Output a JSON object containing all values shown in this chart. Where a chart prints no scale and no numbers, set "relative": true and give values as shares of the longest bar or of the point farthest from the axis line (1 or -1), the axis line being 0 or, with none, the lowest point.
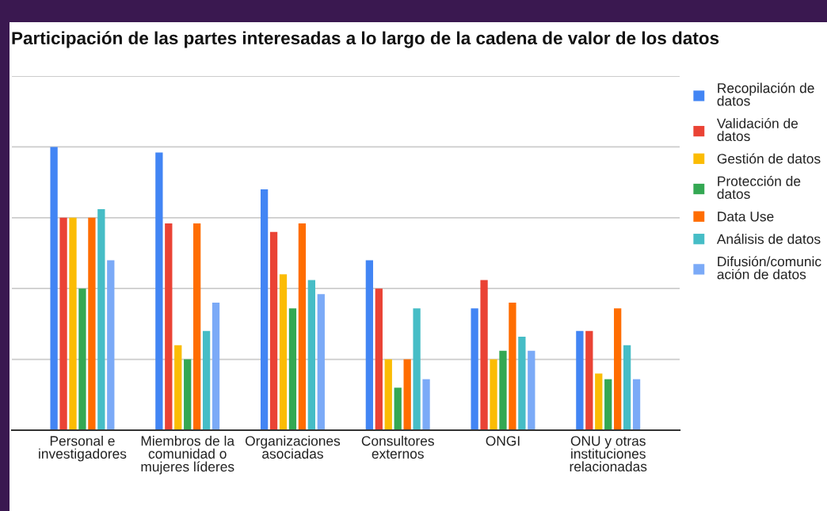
{
  "chart_data": {
    "type": "bar",
    "title": "Participación de las partes interesadas a lo largo de la cadena de valor de los datos",
    "categories": [
      "Personal e investigadores",
      "Miembros de la comunidad o mujeres líderes",
      "Organizaciones asociadas",
      "Consultores externos",
      "ONGI",
      "ONU y otras instituciones relacionadas"
    ],
    "series": [
      {
        "name": "Recopilación de datos",
        "color": "#4285f4",
        "values": [
          1.0,
          0.98,
          0.85,
          0.6,
          0.43,
          0.35
        ]
      },
      {
        "name": "Validación de datos",
        "color": "#ea4335",
        "values": [
          0.75,
          0.73,
          0.7,
          0.5,
          0.53,
          0.35
        ]
      },
      {
        "name": "Gestión de datos",
        "color": "#fbbc04",
        "values": [
          0.75,
          0.3,
          0.55,
          0.25,
          0.25,
          0.2
        ]
      },
      {
        "name": "Protección de datos",
        "color": "#34a853",
        "values": [
          0.5,
          0.25,
          0.43,
          0.15,
          0.28,
          0.18
        ]
      },
      {
        "name": "Data Use",
        "color": "#ff6d01",
        "values": [
          0.75,
          0.73,
          0.73,
          0.25,
          0.45,
          0.43
        ]
      },
      {
        "name": "Análisis de datos",
        "color": "#46bdc6",
        "values": [
          0.78,
          0.35,
          0.53,
          0.43,
          0.33,
          0.3
        ]
      },
      {
        "name": "Difusión/comunicación de datos",
        "color": "#7baaf7",
        "values": [
          0.6,
          0.45,
          0.48,
          0.18,
          0.28,
          0.18
        ]
      }
    ],
    "relative": true,
    "grid": "y",
    "legend": "right"
  }
}
